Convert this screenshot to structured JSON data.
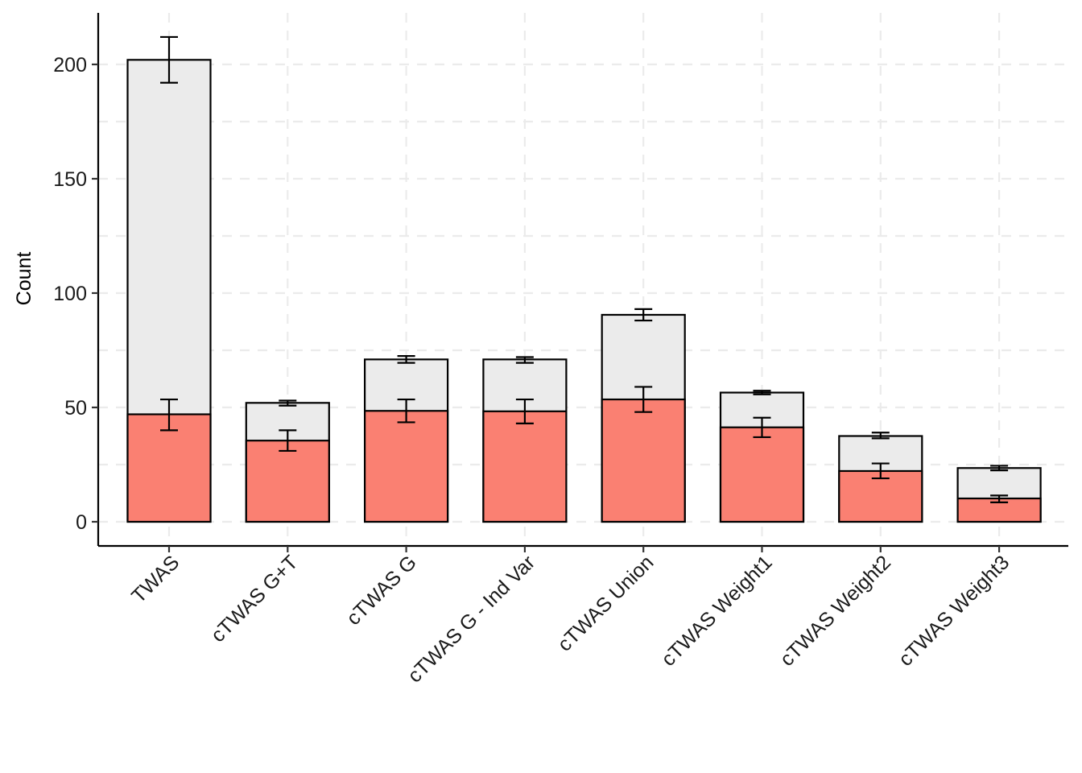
{
  "chart_data": {
    "type": "bar",
    "stacked": true,
    "title": "",
    "xlabel": "",
    "ylabel": "Count",
    "ylim": [
      -10.5,
      222
    ],
    "yticks": [
      0,
      50,
      100,
      150,
      200
    ],
    "grid": true,
    "categories": [
      "TWAS",
      "cTWAS G+T",
      "cTWAS G",
      "cTWAS G - Ind Var",
      "cTWAS Union",
      "cTWAS Weight1",
      "cTWAS Weight2",
      "cTWAS Weight3"
    ],
    "series": [
      {
        "name": "lower",
        "color": "#FA8072",
        "values": [
          47,
          35.5,
          48.5,
          48.3,
          53.5,
          41.3,
          22.2,
          10.2
        ],
        "error": [
          [
            40,
            53.5
          ],
          [
            31,
            40
          ],
          [
            43.5,
            53.5
          ],
          [
            43,
            53.5
          ],
          [
            48,
            59
          ],
          [
            37,
            45.5
          ],
          [
            19,
            25.5
          ],
          [
            8.5,
            11.5
          ]
        ]
      },
      {
        "name": "total",
        "color": "#EBEBEB",
        "values": [
          202,
          52,
          71,
          71,
          90.5,
          56.5,
          37.5,
          23.5
        ],
        "error": [
          [
            192,
            212
          ],
          [
            50.8,
            53
          ],
          [
            69.5,
            72.5
          ],
          [
            69.5,
            72
          ],
          [
            88,
            93
          ],
          [
            55.7,
            57.3
          ],
          [
            36.5,
            39
          ],
          [
            22.5,
            24.5
          ]
        ]
      }
    ]
  }
}
